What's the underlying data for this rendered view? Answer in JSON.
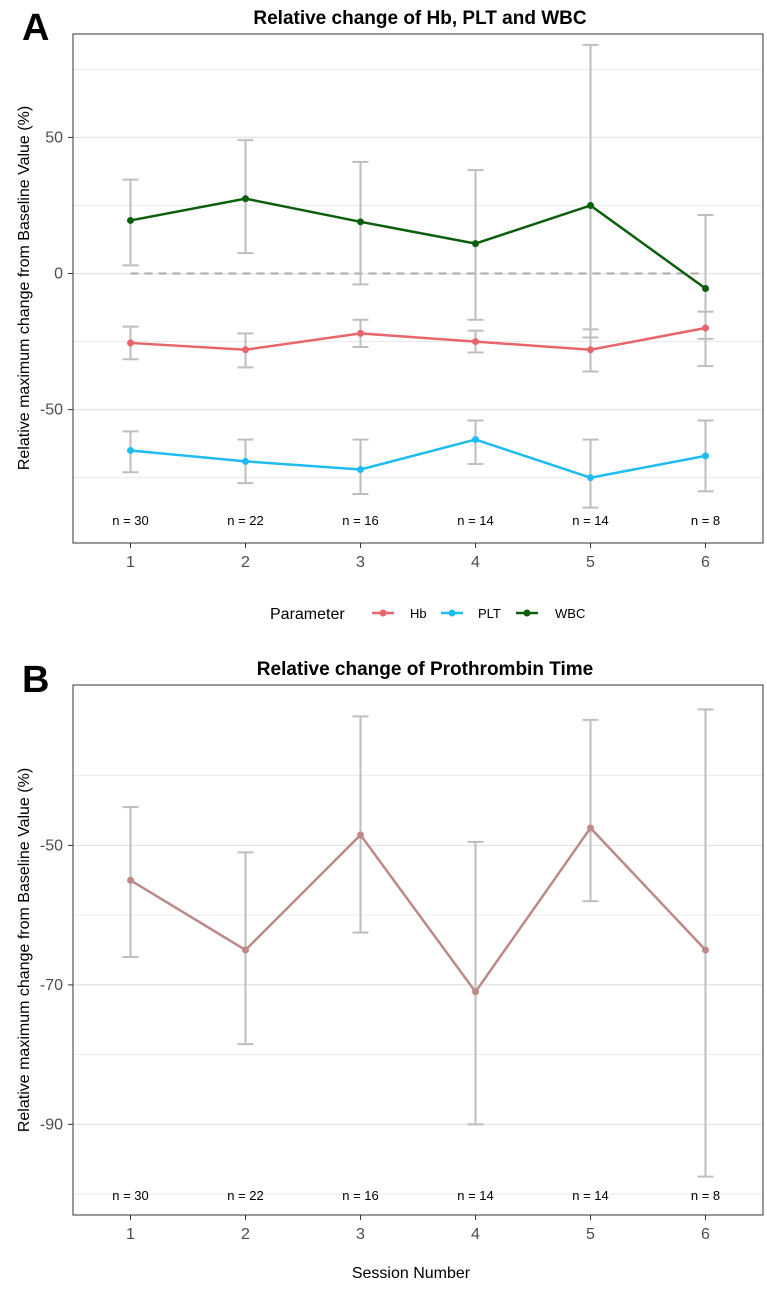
{
  "colors": {
    "Hb": "#E8666A",
    "PLT": "#1EBCEF",
    "WBC": "#0B5F0B",
    "PT": "#BC8A88",
    "errorbar": "#BEBEBE",
    "grid": "#E6E6E6",
    "border": "#333333",
    "reference": "#A9A9A9"
  },
  "panels": [
    {
      "letter": "A",
      "chart_data": {
        "type": "line",
        "title": "Relative change of Hb, PLT and WBC",
        "xlabel": "",
        "ylabel": "Relative maximum change from Baseline Value (%)",
        "x": [
          1,
          2,
          3,
          4,
          5,
          6
        ],
        "xticks": [
          "1",
          "2",
          "3",
          "4",
          "5",
          "6"
        ],
        "yticks": [
          -50,
          0,
          50
        ],
        "ylim": [
          -99,
          88
        ],
        "xlim": [
          0.5,
          6.5
        ],
        "grid": true,
        "reference_line": 0,
        "n_labels": [
          "n = 30",
          "n = 22",
          "n = 16",
          "n = 14",
          "n = 14",
          "n = 8"
        ],
        "legend": {
          "title": "Parameter",
          "position": "bottom",
          "entries": [
            "Hb",
            "PLT",
            "WBC"
          ]
        },
        "series": [
          {
            "name": "Hb",
            "values": [
              -25.5,
              -28,
              -22,
              -25,
              -28,
              -20
            ],
            "upper": [
              -19.5,
              -22,
              -17,
              -21,
              -20.5,
              -14
            ],
            "lower": [
              -31.5,
              -34.5,
              -27,
              -29,
              -36,
              -34
            ]
          },
          {
            "name": "PLT",
            "values": [
              -65,
              -69,
              -72,
              -61,
              -75,
              -67
            ],
            "upper": [
              -58,
              -61,
              -61,
              -54,
              -61,
              -54
            ],
            "lower": [
              -73,
              -77,
              -81,
              -70,
              -86,
              -80
            ]
          },
          {
            "name": "WBC",
            "values": [
              19.5,
              27.5,
              19,
              11,
              25,
              -5.5
            ],
            "upper": [
              34.5,
              49,
              41,
              38,
              84,
              21.5
            ],
            "lower": [
              3,
              7.5,
              -4,
              -17,
              -23.5,
              -24
            ]
          }
        ]
      }
    },
    {
      "letter": "B",
      "chart_data": {
        "type": "line",
        "title": "Relative change of Prothrombin Time",
        "xlabel": "Session Number",
        "ylabel": "Relative maximum change from Baseline Value (%)",
        "x": [
          1,
          2,
          3,
          4,
          5,
          6
        ],
        "xticks": [
          "1",
          "2",
          "3",
          "4",
          "5",
          "6"
        ],
        "yticks": [
          -90,
          -70,
          -50
        ],
        "ylim": [
          -103,
          -27
        ],
        "xlim": [
          0.5,
          6.5
        ],
        "grid": true,
        "n_labels": [
          "n = 30",
          "n = 22",
          "n = 16",
          "n = 14",
          "n = 14",
          "n = 8"
        ],
        "series": [
          {
            "name": "",
            "values": [
              -55,
              -65,
              -48.5,
              -71,
              -47.5,
              -65
            ],
            "upper": [
              -44.5,
              -51,
              -31.5,
              -49.5,
              -32,
              -30.5
            ],
            "lower": [
              -66,
              -78.5,
              -62.5,
              -90,
              -58,
              -97.5
            ]
          }
        ]
      }
    }
  ]
}
